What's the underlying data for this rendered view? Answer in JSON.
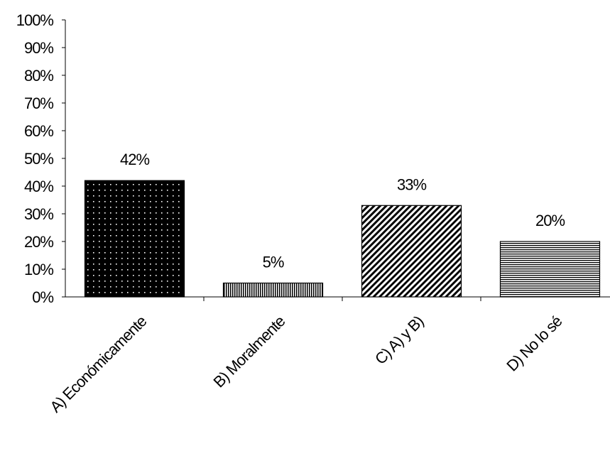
{
  "chart_data": {
    "type": "bar",
    "categories": [
      "A) Económicamente",
      "B) Moralmente",
      "C) A) y B)",
      "D) No lo sé"
    ],
    "values": [
      42,
      5,
      33,
      20
    ],
    "value_labels": [
      "42%",
      "5%",
      "33%",
      "20%"
    ],
    "y_ticks": [
      "0%",
      "10%",
      "20%",
      "30%",
      "40%",
      "50%",
      "60%",
      "70%",
      "80%",
      "90%",
      "100%"
    ],
    "ylim": [
      0,
      100
    ],
    "title": "",
    "xlabel": "",
    "ylabel": "",
    "grid": false,
    "bar_patterns": [
      "dotted-black",
      "vertical-stripes",
      "diagonal-stripes",
      "horizontal-stripes"
    ]
  }
}
